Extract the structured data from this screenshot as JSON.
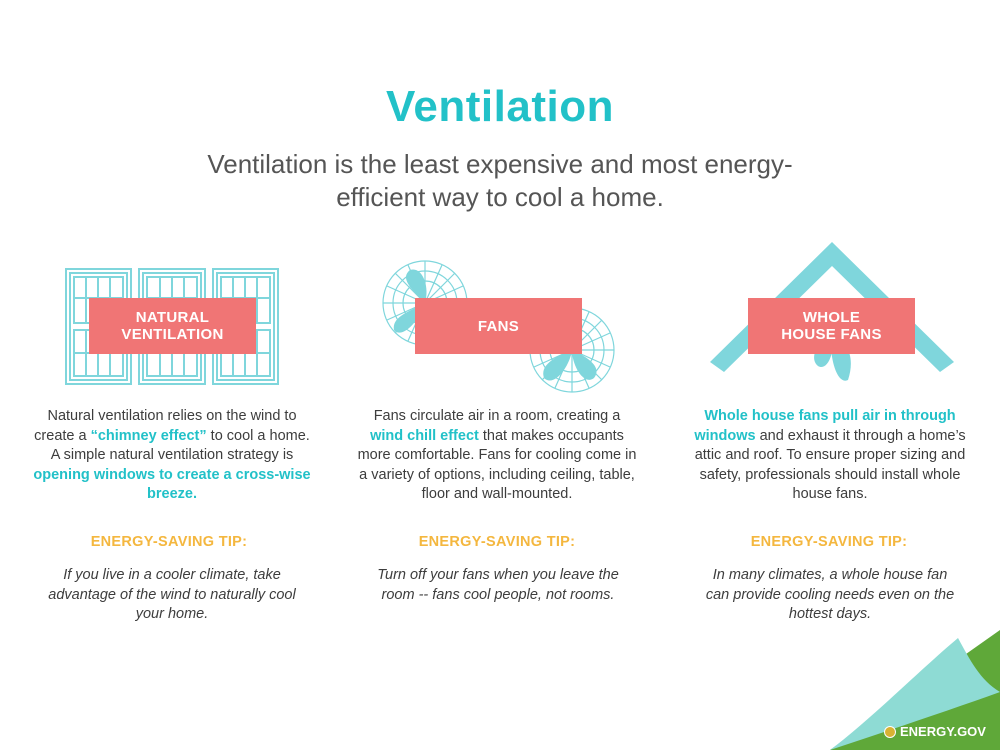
{
  "title": "Ventilation",
  "subtitle": "Ventilation is the least expensive and most energy-efficient way to cool a home.",
  "columns": [
    {
      "badge_line1": "NATURAL",
      "badge_line2": "VENTILATION",
      "icon": "windows-icon",
      "desc": [
        {
          "t": "Natural ventilation relies on the wind to create a "
        },
        {
          "t": "“chimney effect”",
          "hl": true
        },
        {
          "t": " to cool a home. A simple natural ventilation strategy is "
        },
        {
          "t": "opening windows to create a cross-wise breeze.",
          "hl": true
        }
      ],
      "tip_heading": "ENERGY-SAVING TIP:",
      "tip": "If you live in a cooler climate, take advantage of the wind to naturally cool your home."
    },
    {
      "badge_line1": "FANS",
      "badge_line2": "",
      "icon": "fans-icon",
      "desc": [
        {
          "t": "Fans circulate air in a room, creating a "
        },
        {
          "t": "wind chill effect",
          "hl": true
        },
        {
          "t": " that makes occupants more comfortable. Fans for cooling come in a variety of options, including ceiling, table, floor and wall-mounted."
        }
      ],
      "tip_heading": "ENERGY-SAVING TIP:",
      "tip": "Turn off your fans when you leave the room -- fans cool people, not rooms."
    },
    {
      "badge_line1": "WHOLE",
      "badge_line2": "HOUSE FANS",
      "icon": "house-fan-icon",
      "desc": [
        {
          "t": "Whole house fans pull air in through windows",
          "hl": true
        },
        {
          "t": " and exhaust it through a home’s attic and roof. To ensure proper sizing and safety, professionals should install whole house fans."
        }
      ],
      "tip_heading": "ENERGY-SAVING TIP:",
      "tip": "In many climates, a whole house fan can provide cooling needs even on the hottest days."
    }
  ],
  "footer": {
    "logo_text": "ENERGY.GOV"
  },
  "colors": {
    "teal": "#22c1c8",
    "illustration": "#7fd6dc",
    "badge": "#f07575",
    "tip": "#f4b73f",
    "corner": "#8edbd4",
    "corner_dark": "#5fa839"
  }
}
